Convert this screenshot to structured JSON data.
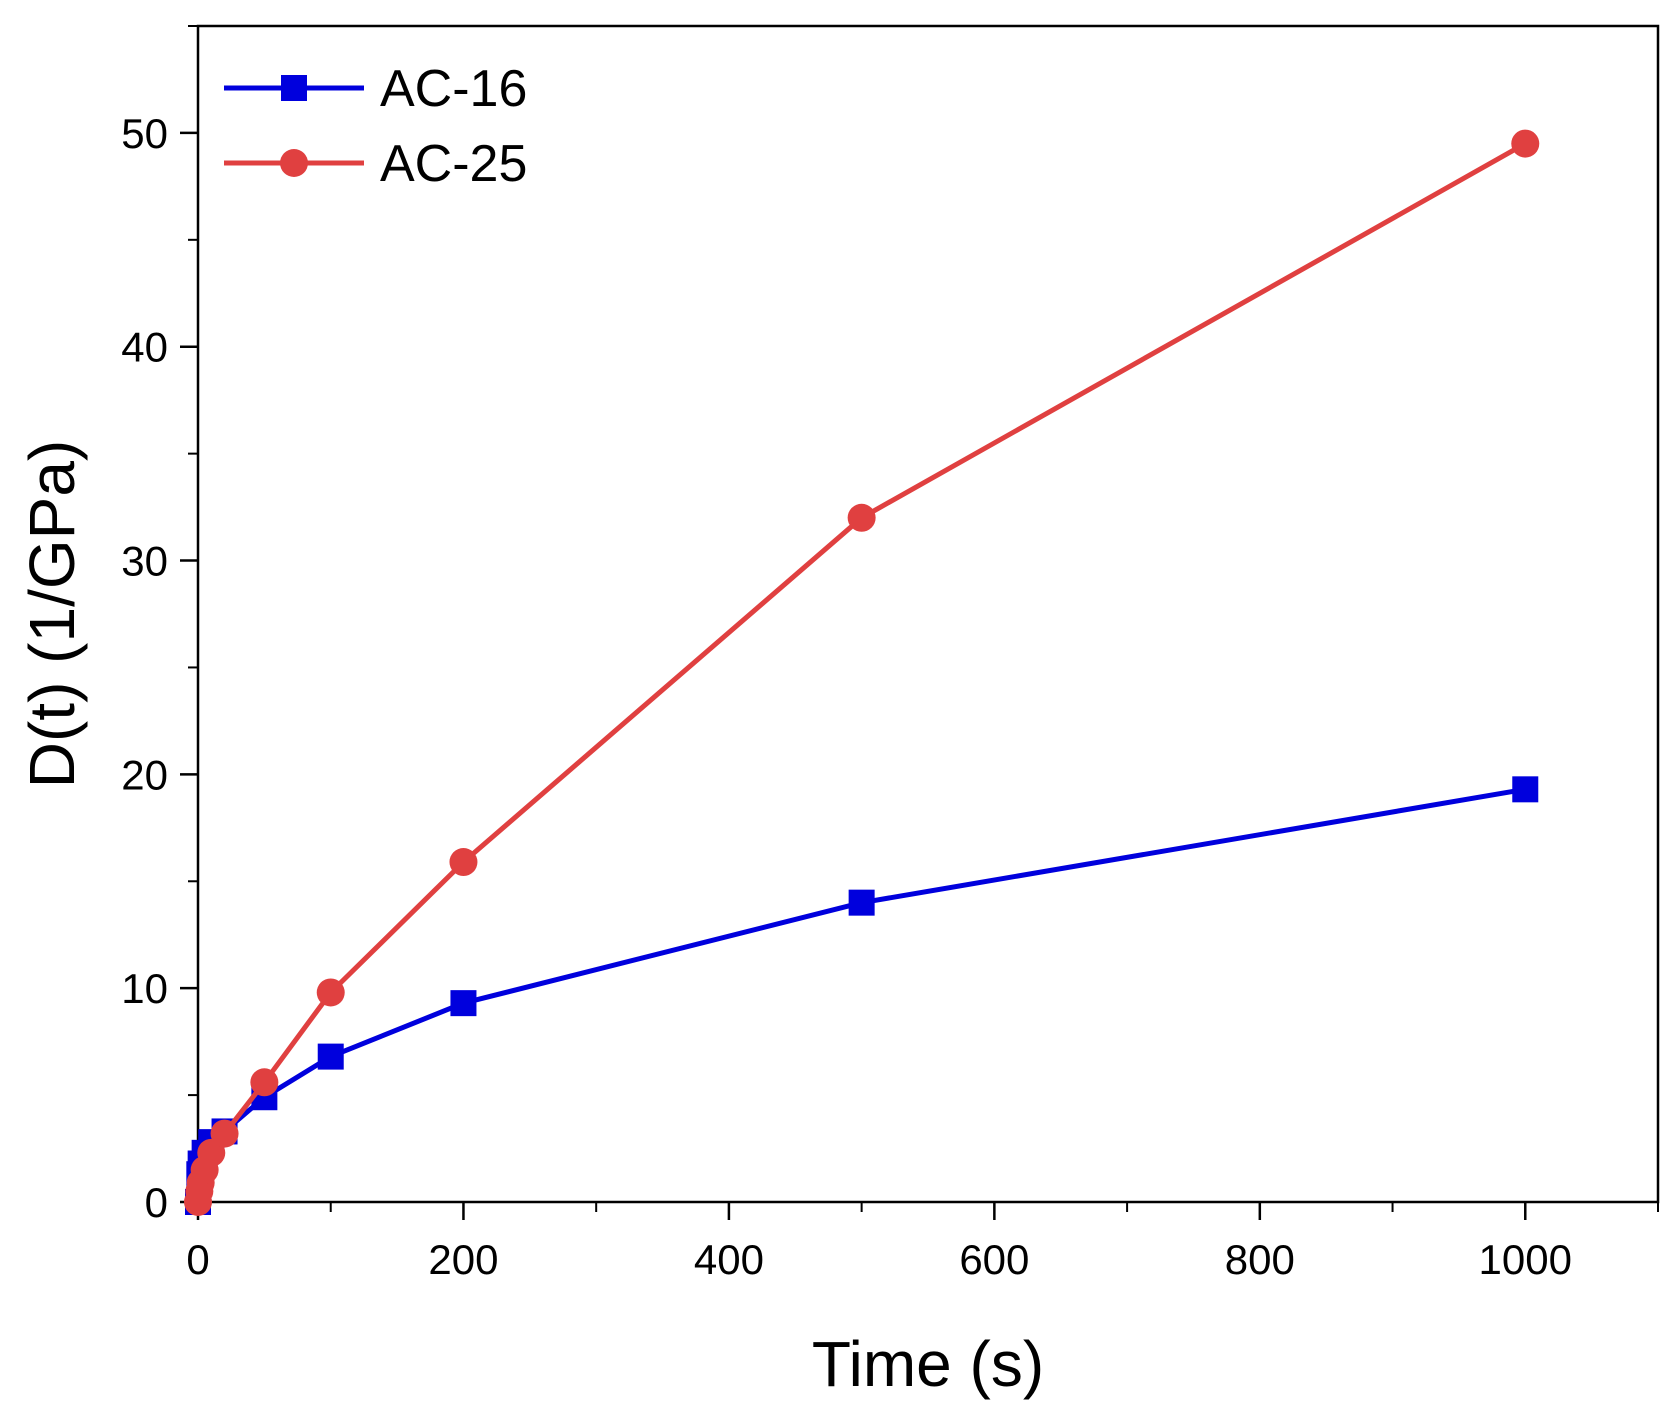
{
  "chart_data": {
    "type": "line",
    "xlabel": "Time (s)",
    "ylabel": "D(t) (1/GPa)",
    "xlim": [
      0,
      1100
    ],
    "ylim": [
      0,
      55
    ],
    "xticks": [
      0,
      200,
      400,
      600,
      800,
      1000
    ],
    "yticks": [
      0,
      10,
      20,
      30,
      40,
      50
    ],
    "xtick_labels": [
      "0",
      "200",
      "400",
      "600",
      "800",
      "1000"
    ],
    "ytick_labels": [
      "0",
      "10",
      "20",
      "30",
      "40",
      "50"
    ],
    "x_minor_step": 100,
    "y_minor_step": 5,
    "grid": false,
    "legend": "top-left",
    "series": [
      {
        "name": "AC-16",
        "color": "#0000dd",
        "marker": "square",
        "x": [
          0,
          1,
          2,
          5,
          10,
          20,
          50,
          100,
          200,
          500,
          1000
        ],
        "y": [
          0,
          1.3,
          1.8,
          2.3,
          2.8,
          3.3,
          4.9,
          6.8,
          9.3,
          14.0,
          19.3
        ]
      },
      {
        "name": "AC-25",
        "color": "#e04040",
        "marker": "circle",
        "x": [
          0,
          1,
          2,
          5,
          10,
          20,
          50,
          100,
          200,
          500,
          1000
        ],
        "y": [
          0,
          0.5,
          0.9,
          1.5,
          2.3,
          3.2,
          5.6,
          9.8,
          15.9,
          32.0,
          49.5
        ]
      }
    ]
  }
}
